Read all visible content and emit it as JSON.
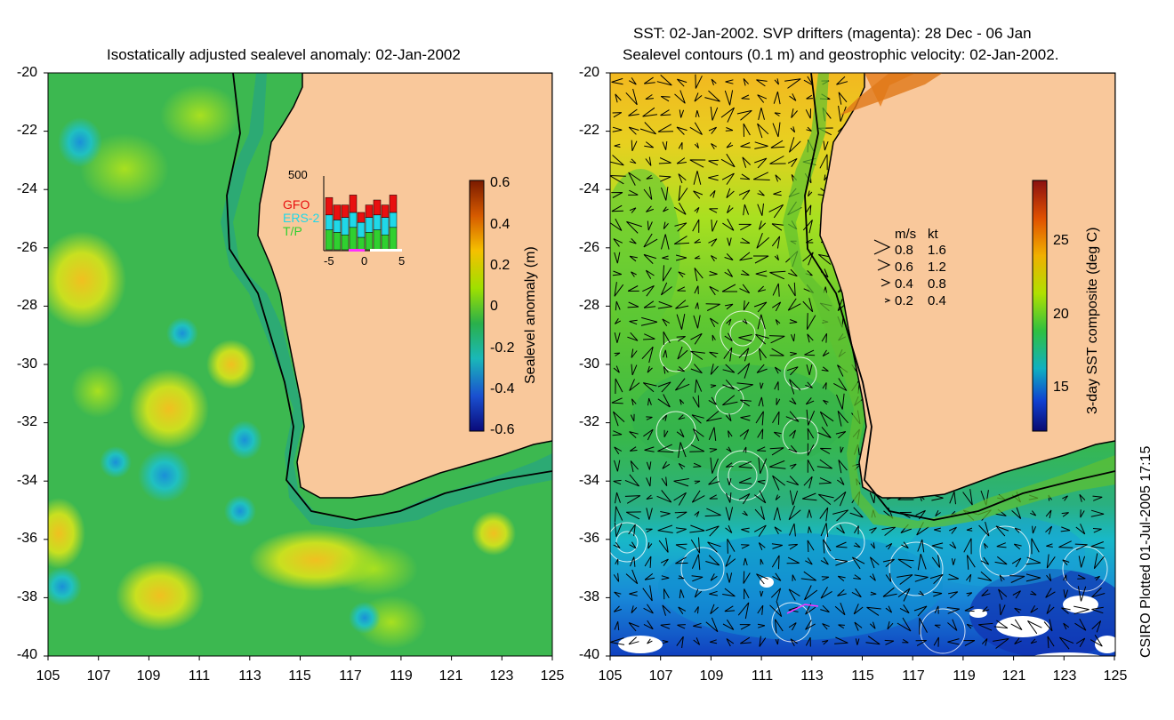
{
  "left_panel": {
    "title": "Isostatically adjusted sealevel anomaly: 02-Jan-2002",
    "y_ticks": [
      "-20",
      "-22",
      "-24",
      "-26",
      "-28",
      "-30",
      "-32",
      "-34",
      "-36",
      "-38",
      "-40"
    ],
    "x_ticks": [
      "105",
      "107",
      "109",
      "111",
      "113",
      "115",
      "117",
      "119",
      "121",
      "123",
      "125"
    ],
    "colorbar": {
      "label": "Sealevel anomaly (m)",
      "ticks": [
        "0.6",
        "0.4",
        "0.2",
        "0",
        "-0.2",
        "-0.4",
        "-0.6"
      ],
      "colors": [
        "#7a1a00",
        "#d65a00",
        "#f5c000",
        "#9fe000",
        "#2ab04a",
        "#1ab8b8",
        "#1a50d0",
        "#0a0a7a"
      ]
    },
    "inset": {
      "ymax_label": "500",
      "x_ticks": [
        "-5",
        "0",
        "5"
      ],
      "series": [
        {
          "name": "GFO",
          "color": "#e81010"
        },
        {
          "name": "ERS-2",
          "color": "#20d8e8"
        },
        {
          "name": "T/P",
          "color": "#30d030"
        }
      ]
    }
  },
  "right_panel": {
    "title_line1": "SST: 02-Jan-2002. SVP drifters (magenta): 28 Dec - 06 Jan",
    "title_line2": "Sealevel contours (0.1 m) and geostrophic velocity: 02-Jan-2002.",
    "y_ticks": [
      "-20",
      "-22",
      "-24",
      "-26",
      "-28",
      "-30",
      "-32",
      "-34",
      "-36",
      "-38",
      "-40"
    ],
    "x_ticks": [
      "105",
      "107",
      "109",
      "111",
      "113",
      "115",
      "117",
      "119",
      "121",
      "123",
      "125"
    ],
    "colorbar": {
      "label": "3-day SST composite (deg C)",
      "ticks": [
        "25",
        "20",
        "15"
      ],
      "colors": [
        "#8a1010",
        "#e05000",
        "#f0b000",
        "#b0e000",
        "#30c040",
        "#10b0c0",
        "#1040d0",
        "#0a0a70"
      ]
    },
    "velocity_legend": {
      "header_ms": "m/s",
      "header_kt": "kt",
      "rows": [
        {
          "ms": "0.8",
          "kt": "1.6"
        },
        {
          "ms": "0.6",
          "kt": "1.2"
        },
        {
          "ms": "0.4",
          "kt": "0.8"
        },
        {
          "ms": "0.2",
          "kt": "0.4"
        }
      ]
    }
  },
  "credit": "CSIRO Plotted 01-Jul-2005 17:15",
  "land_color": "#f9c89b"
}
